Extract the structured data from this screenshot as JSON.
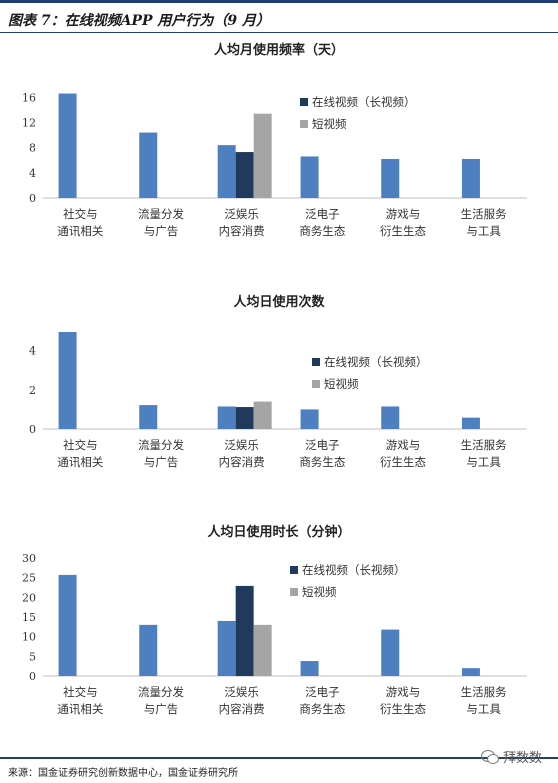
{
  "header": {
    "title": "图表 7：在线视频APP 用户行为（9 月）"
  },
  "footer": {
    "source": "来源：国金证券研究创新数据中心，国金证券研究所",
    "watermark": "拜数数"
  },
  "colors": {
    "general": "#4e7fc1",
    "long_video": "#203a5e",
    "short_video": "#a5a5a5",
    "frame": "#1f3f73"
  },
  "chart_data": [
    {
      "type": "bar",
      "title": "人均月使用频率（天）",
      "categories": [
        [
          "社交与",
          "通讯相关"
        ],
        [
          "流量分发",
          "与广告"
        ],
        [
          "泛娱乐",
          "内容消费"
        ],
        [
          "泛电子",
          "商务生态"
        ],
        [
          "游戏与",
          "衍生生态"
        ],
        [
          "生活服务",
          "与工具"
        ]
      ],
      "values": [
        16.6,
        10.4,
        8.4,
        6.6,
        6.2,
        6.2
      ],
      "long_video": 7.3,
      "short_video": 13.4,
      "yticks": [
        0,
        4,
        8,
        12,
        16
      ],
      "ylim": [
        0,
        17
      ],
      "legend": {
        "long": "在线视频（长视频）",
        "short": "短视频"
      }
    },
    {
      "type": "bar",
      "title": "人均日使用次数",
      "categories": [
        [
          "社交与",
          "通讯相关"
        ],
        [
          "流量分发",
          "与广告"
        ],
        [
          "泛娱乐",
          "内容消费"
        ],
        [
          "泛电子",
          "商务生态"
        ],
        [
          "游戏与",
          "衍生生态"
        ],
        [
          "生活服务",
          "与工具"
        ]
      ],
      "values": [
        4.95,
        1.22,
        1.15,
        1.0,
        1.15,
        0.58
      ],
      "long_video": 1.12,
      "short_video": 1.4,
      "yticks": [
        0,
        2,
        4
      ],
      "ylim": [
        0,
        5
      ],
      "legend": {
        "long": "在线视频（长视频）",
        "short": "短视频"
      }
    },
    {
      "type": "bar",
      "title": "人均日使用时长（分钟）",
      "categories": [
        [
          "社交与",
          "通讯相关"
        ],
        [
          "流量分发",
          "与广告"
        ],
        [
          "泛娱乐",
          "内容消费"
        ],
        [
          "泛电子",
          "商务生态"
        ],
        [
          "游戏与",
          "衍生生态"
        ],
        [
          "生活服务",
          "与工具"
        ]
      ],
      "values": [
        25.7,
        13.0,
        14.0,
        3.8,
        11.8,
        2.0
      ],
      "long_video": 22.9,
      "short_video": 13.0,
      "yticks": [
        0,
        5,
        10,
        15,
        20,
        25,
        30
      ],
      "ylim": [
        0,
        30
      ],
      "legend": {
        "long": "在线视频（长视频）",
        "short": "短视频"
      }
    }
  ]
}
